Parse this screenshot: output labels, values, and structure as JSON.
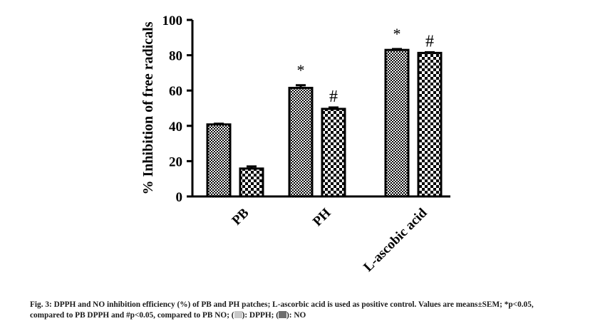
{
  "chart_data": {
    "type": "bar",
    "ylabel": "% Inhibition of free radicals",
    "xlabel": "",
    "ylim": [
      0,
      100
    ],
    "yticks": [
      0,
      20,
      40,
      60,
      80,
      100
    ],
    "categories": [
      "PB",
      "PH",
      "L-ascobic acid"
    ],
    "series": [
      {
        "name": "DPPH",
        "values": [
          40.8,
          61.5,
          83
        ],
        "errors": [
          0.4,
          1.5,
          0.5
        ],
        "pattern": "fine-check",
        "swatch_color": "#c8c8c8"
      },
      {
        "name": "NO",
        "values": [
          15.8,
          49.6,
          81.3
        ],
        "errors": [
          1.2,
          0.8,
          0.4
        ],
        "pattern": "coarse-check",
        "swatch_color": "#6e6e6e"
      }
    ],
    "annotations": [
      {
        "category": "PH",
        "series": "DPPH",
        "text": "*"
      },
      {
        "category": "PH",
        "series": "NO",
        "text": "#"
      },
      {
        "category": "L-ascobic acid",
        "series": "DPPH",
        "text": "*"
      },
      {
        "category": "L-ascobic acid",
        "series": "NO",
        "text": "#"
      }
    ],
    "grid": false,
    "legend": "in caption"
  },
  "caption": {
    "line1": "Fig. 3: DPPH and NO inhibition efficiency (%) of PB and PH patches; L-ascorbic acid is used as positive control. Values are means±SEM; *p<0.05,",
    "line2_a": "compared to PB DPPH and #p<0.05, compared to PB NO; (",
    "line2_b": "): DPPH; (",
    "line2_c": "): NO"
  }
}
